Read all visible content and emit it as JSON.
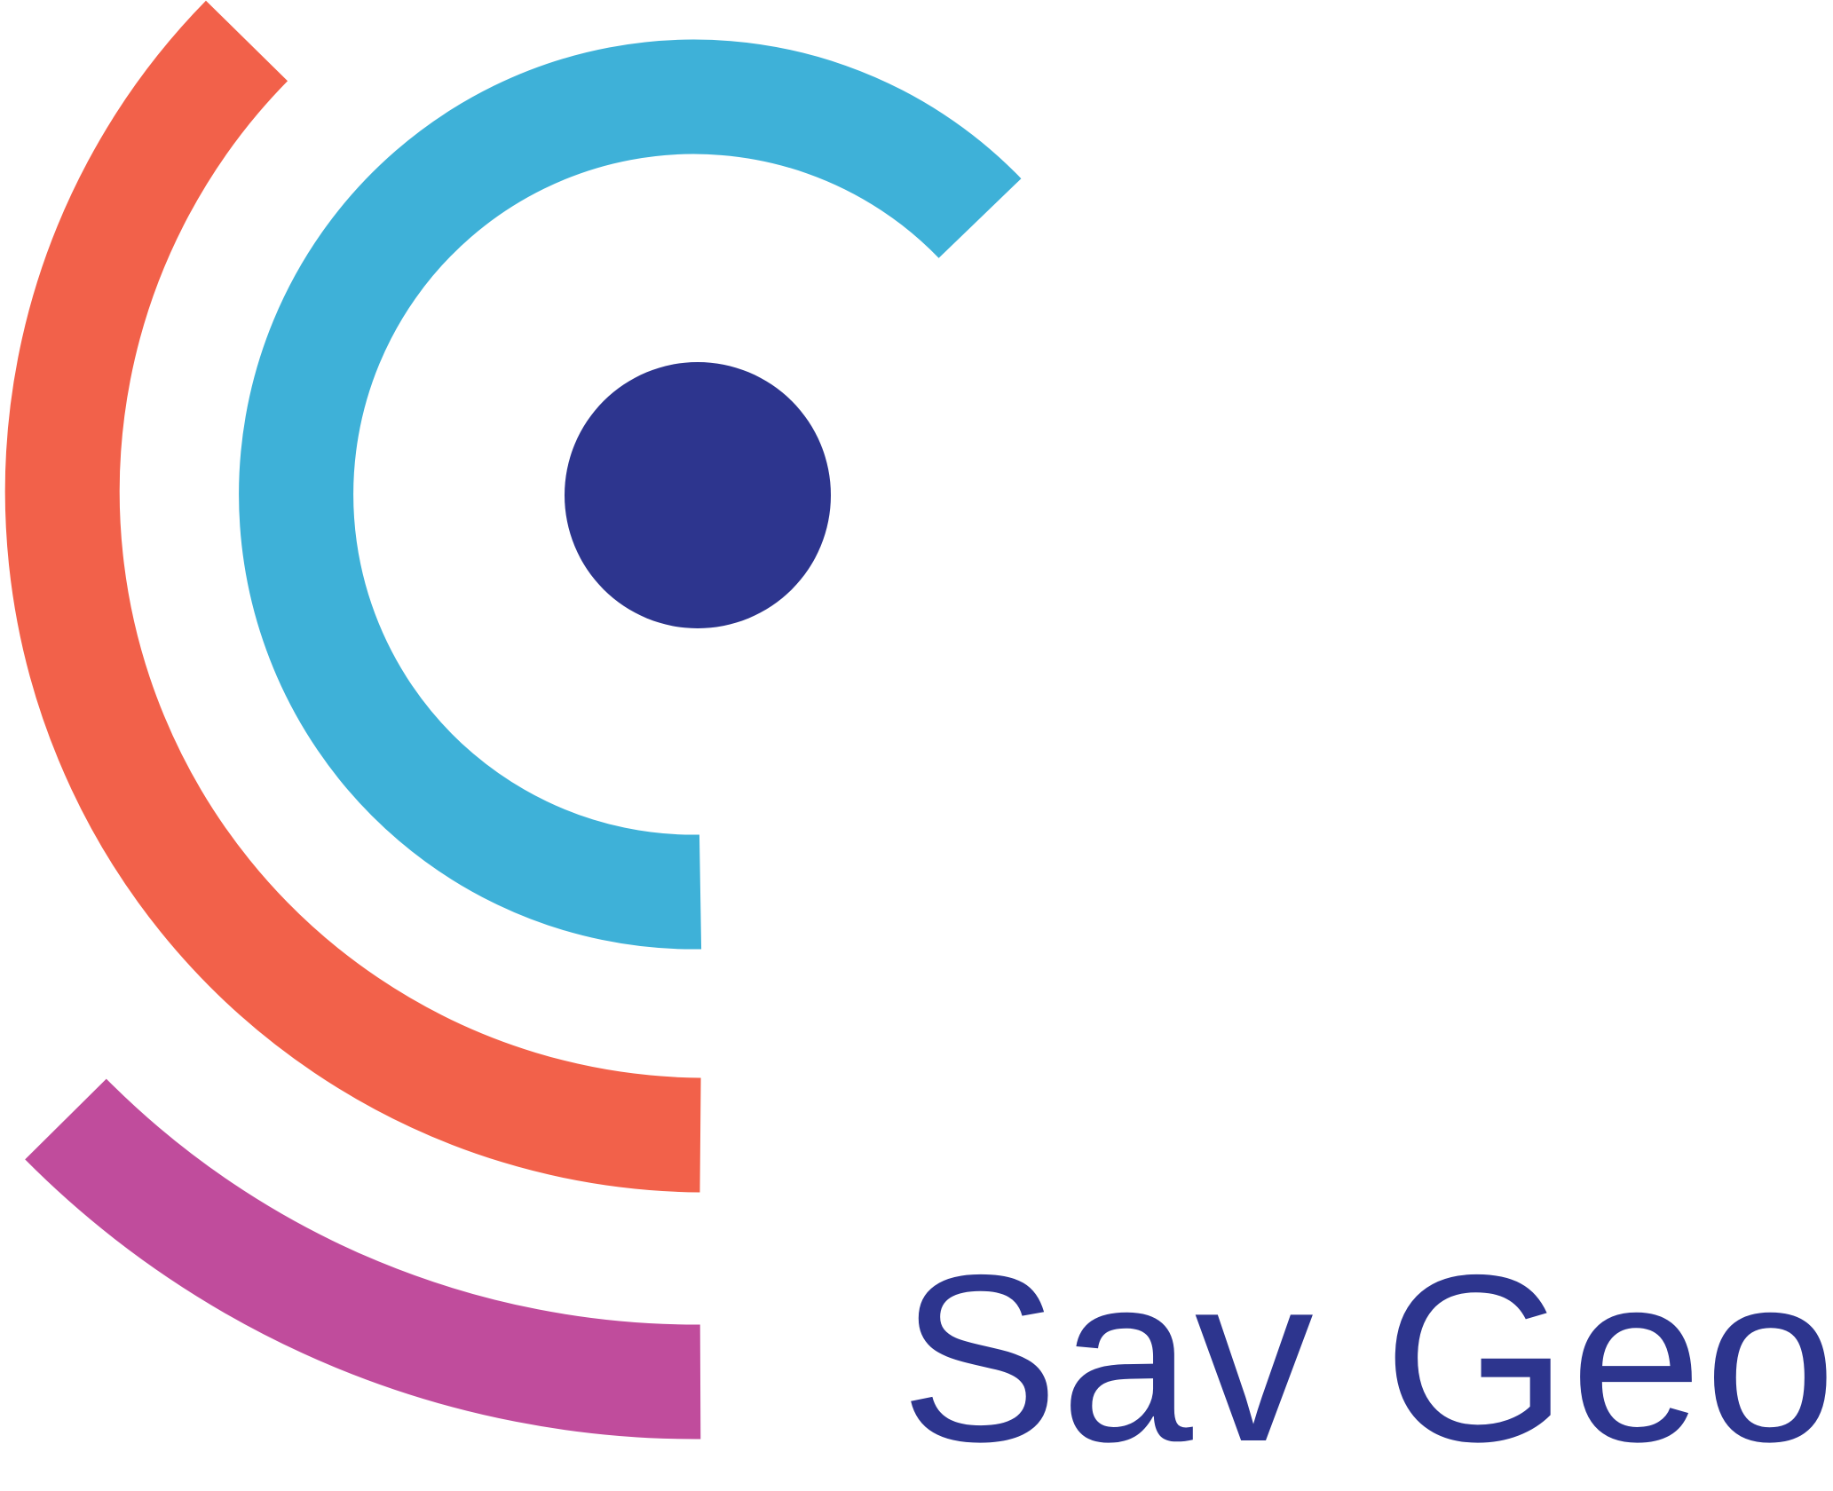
{
  "brand": {
    "name": "Sav Geo",
    "colors": {
      "outer_arc": "#F2614A",
      "middle_arc": "#3EB1D8",
      "bottom_arc": "#C04C9C",
      "dot": "#2D358E",
      "wordmark": "#2D358E",
      "background": "#FFFFFF"
    }
  }
}
